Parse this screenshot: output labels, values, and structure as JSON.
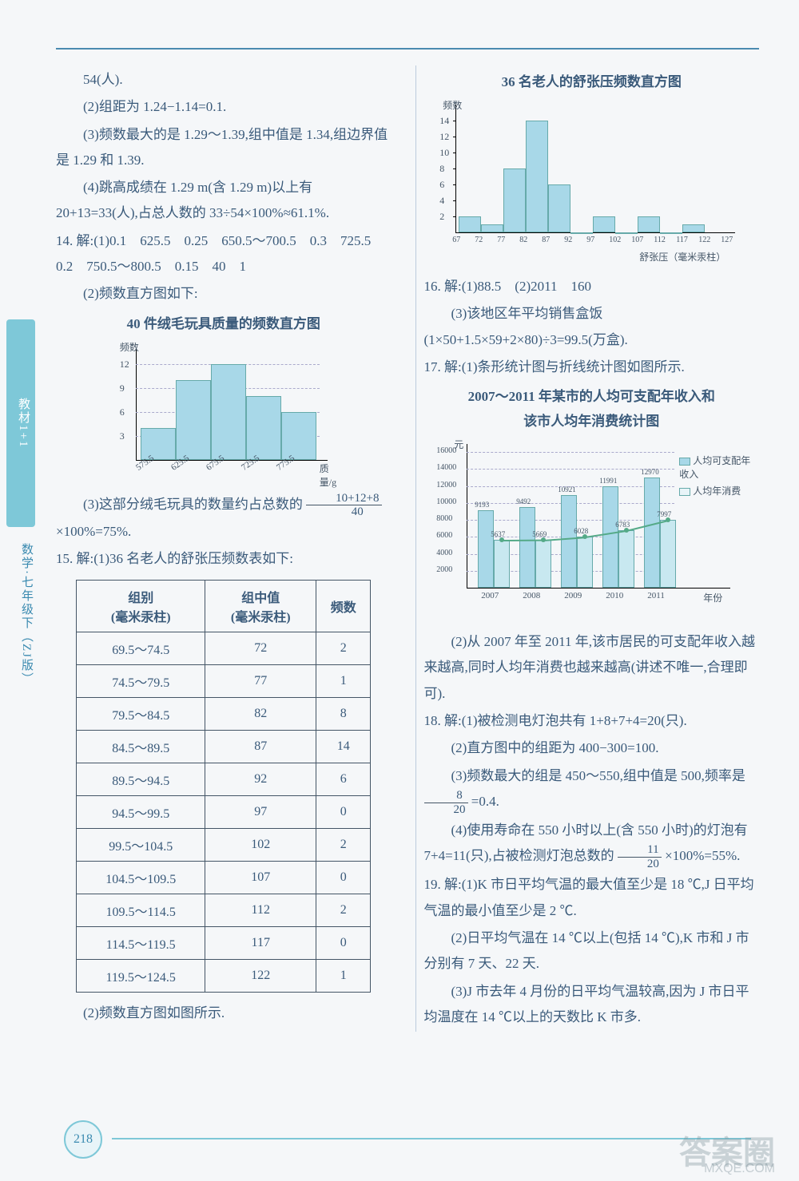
{
  "sidebar": {
    "label1": "教材1+1",
    "label2": "数学·七年级下（ZJ版）"
  },
  "pagenum": "218",
  "watermark": {
    "main": "答案圈",
    "sub": "MXQE.COM"
  },
  "left": {
    "p1": "54(人).",
    "p2": "(2)组距为 1.24−1.14=0.1.",
    "p3": "(3)频数最大的是 1.29～1.39,组中值是 1.34,组边界值是 1.29 和 1.39.",
    "p4": "(4)跳高成绩在 1.29 m(含 1.29 m)以上有 20+13=33(人),占总人数的 33÷54×100%≈61.1%.",
    "q14a": "14. 解:(1)0.1　625.5　0.25　650.5～700.5　0.3　725.5　0.2　750.5～800.5　0.15　40　1",
    "q14b": "(2)频数直方图如下:",
    "chart1_title": "40 件绒毛玩具质量的频数直方图",
    "chart1": {
      "ylabel": "频数",
      "xlabel": "质量/g",
      "yticks": [
        3,
        6,
        9,
        12
      ],
      "xcats": [
        "575.5",
        "625.5",
        "675.5",
        "725.5",
        "775.5"
      ],
      "values": [
        4,
        10,
        12,
        8,
        6
      ],
      "bar_color": "#a8d8e8",
      "ymax": 13
    },
    "q14c_pre": "(3)这部分绒毛玩具的数量约占总数的",
    "q14c_frac_num": "10+12+8",
    "q14c_frac_den": "40",
    "q14c_post": "×100%=75%.",
    "q15a": "15. 解:(1)36 名老人的舒张压频数表如下:",
    "table": {
      "headers": [
        "组别\n(毫米汞柱)",
        "组中值\n(毫米汞柱)",
        "频数"
      ],
      "rows": [
        [
          "69.5～74.5",
          "72",
          "2"
        ],
        [
          "74.5～79.5",
          "77",
          "1"
        ],
        [
          "79.5～84.5",
          "82",
          "8"
        ],
        [
          "84.5～89.5",
          "87",
          "14"
        ],
        [
          "89.5～94.5",
          "92",
          "6"
        ],
        [
          "94.5～99.5",
          "97",
          "0"
        ],
        [
          "99.5～104.5",
          "102",
          "2"
        ],
        [
          "104.5～109.5",
          "107",
          "0"
        ],
        [
          "109.5～114.5",
          "112",
          "2"
        ],
        [
          "114.5～119.5",
          "117",
          "0"
        ],
        [
          "119.5～124.5",
          "122",
          "1"
        ]
      ]
    },
    "q15b": "(2)频数直方图如图所示."
  },
  "right": {
    "chart2_title": "36 名老人的舒张压频数直方图",
    "chart2": {
      "ylabel": "频数",
      "xlabel": "舒张压（毫米汞柱）",
      "yticks": [
        2,
        4,
        6,
        8,
        10,
        12,
        14
      ],
      "xcats": [
        "67",
        "72",
        "77",
        "82",
        "87",
        "92",
        "97",
        "102",
        "107",
        "112",
        "117",
        "122",
        "127"
      ],
      "values": [
        2,
        1,
        8,
        14,
        6,
        0,
        2,
        0,
        2,
        0,
        1
      ],
      "bar_color": "#a8d8e8",
      "ymax": 15
    },
    "q16": "16. 解:(1)88.5　(2)2011　160",
    "q16b": "(3)该地区年平均销售盒饭(1×50+1.5×59+2×80)÷3=99.5(万盒).",
    "q17a": "17. 解:(1)条形统计图与折线统计图如图所示.",
    "chart3_title1": "2007～2011 年某市的人均可支配年收入和",
    "chart3_title2": "该市人均年消费统计图",
    "chart3": {
      "ylabel": "元",
      "yticks": [
        2000,
        4000,
        6000,
        8000,
        10000,
        12000,
        14000,
        16000
      ],
      "xcats": [
        "2007",
        "2008",
        "2009",
        "2010",
        "2011"
      ],
      "bars": [
        9193,
        9492,
        10921,
        11991,
        12970
      ],
      "line": [
        5637,
        5669,
        6028,
        6783,
        7997
      ],
      "legend": [
        "人均可支配年收入",
        "人均年消费"
      ],
      "xlabel": "年份",
      "ymax": 16000
    },
    "q17b": "(2)从 2007 年至 2011 年,该市居民的可支配年收入越来越高,同时人均年消费也越来越高(讲述不唯一,合理即可).",
    "q18a": "18. 解:(1)被检测电灯泡共有 1+8+7+4=20(只).",
    "q18b": "(2)直方图中的组距为 400−300=100.",
    "q18c_pre": "(3)频数最大的组是 450～550,组中值是 500,频率是",
    "q18c_num": "8",
    "q18c_den": "20",
    "q18c_post": "=0.4.",
    "q18d_pre": "(4)使用寿命在 550 小时以上(含 550 小时)的灯泡有 7+4=11(只),占被检测灯泡总数的",
    "q18d_num": "11",
    "q18d_den": "20",
    "q18d_post": "×100%=55%.",
    "q19a": "19. 解:(1)K 市日平均气温的最大值至少是 18 ℃,J 日平均气温的最小值至少是 2 ℃.",
    "q19b": "(2)日平均气温在 14 ℃以上(包括 14 ℃),K 市和 J 市分别有 7 天、22 天.",
    "q19c": "(3)J 市去年 4 月份的日平均气温较高,因为 J 市日平均温度在 14 ℃以上的天数比 K 市多."
  }
}
